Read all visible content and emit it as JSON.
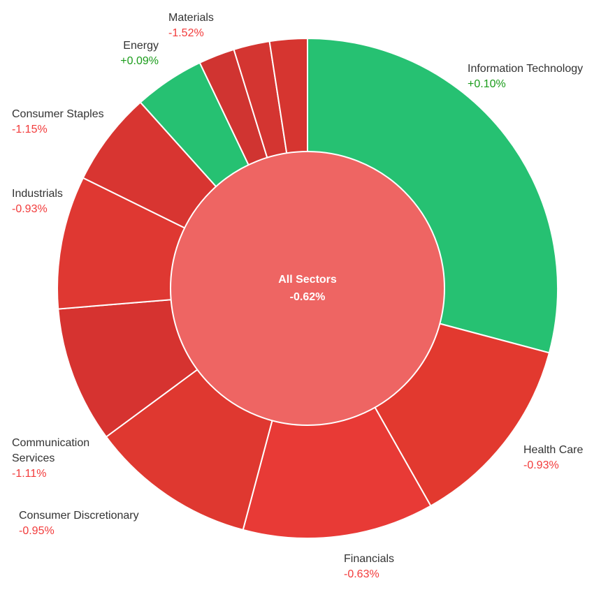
{
  "chart_data": {
    "type": "pie",
    "center": {
      "label": "All Sectors",
      "value": "-0.62%"
    },
    "sectors": [
      {
        "name": "Information Technology",
        "change": "+0.10%",
        "share": 28.8,
        "color": "#26c172",
        "label_lines": [
          "Information Technology"
        ]
      },
      {
        "name": "Health Care",
        "change": "-0.93%",
        "share": 12.5,
        "color": "#e2392f",
        "label_lines": [
          "Health Care"
        ]
      },
      {
        "name": "Financials",
        "change": "-0.63%",
        "share": 12.2,
        "color": "#e83a36",
        "label_lines": [
          "Financials"
        ]
      },
      {
        "name": "Consumer Discretionary",
        "change": "-0.95%",
        "share": 10.6,
        "color": "#df3830",
        "label_lines": [
          "Consumer Discretionary"
        ]
      },
      {
        "name": "Communication Services",
        "change": "-1.11%",
        "share": 8.7,
        "color": "#d63330",
        "label_lines": [
          "Communication",
          "Services"
        ]
      },
      {
        "name": "Industrials",
        "change": "-0.93%",
        "share": 8.5,
        "color": "#df3832",
        "label_lines": [
          "Industrials"
        ]
      },
      {
        "name": "Consumer Staples",
        "change": "-1.15%",
        "share": 6.0,
        "color": "#d83531",
        "label_lines": [
          "Consumer Staples"
        ]
      },
      {
        "name": "Energy",
        "change": "+0.09%",
        "share": 4.5,
        "color": "#26c172",
        "label_lines": [
          "Energy"
        ]
      },
      {
        "name": "Materials",
        "change": "-1.52%",
        "share": 2.3,
        "color": "#d03431",
        "label_lines": [
          "Materials"
        ]
      },
      {
        "name": "",
        "change": "",
        "share": 2.3,
        "color": "#d43531",
        "label_lines": []
      },
      {
        "name": "",
        "change": "",
        "share": 2.4,
        "color": "#d63530",
        "label_lines": []
      }
    ],
    "legend": "none"
  },
  "colors": {
    "positive_text": "#1a9c1a",
    "negative_text": "#f23b3b",
    "center_fill": "#ee6563",
    "border": "#ffffff"
  }
}
